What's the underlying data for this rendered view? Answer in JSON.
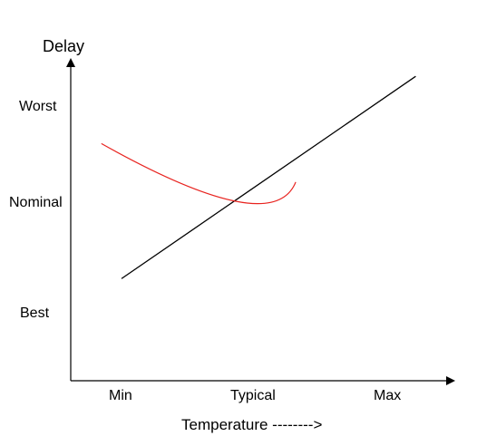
{
  "chart_data": {
    "type": "line",
    "ylabel": "Delay",
    "xlabel": "Temperature -------->",
    "x_ticks": [
      "Min",
      "Typical",
      "Max"
    ],
    "y_ticks": [
      "Best",
      "Nominal",
      "Worst"
    ],
    "grid": false,
    "legend": "none",
    "series": [
      {
        "color": "#000000",
        "points": [
          {
            "x": 0,
            "y": 0.3
          },
          {
            "x": 2.2,
            "y": 2.3
          }
        ]
      },
      {
        "color": "#e8231f",
        "points": [
          {
            "x": -0.15,
            "y": 1.6
          },
          {
            "x": 0.85,
            "y": 1.0
          },
          {
            "x": 1.3,
            "y": 1.2
          }
        ]
      }
    ]
  }
}
